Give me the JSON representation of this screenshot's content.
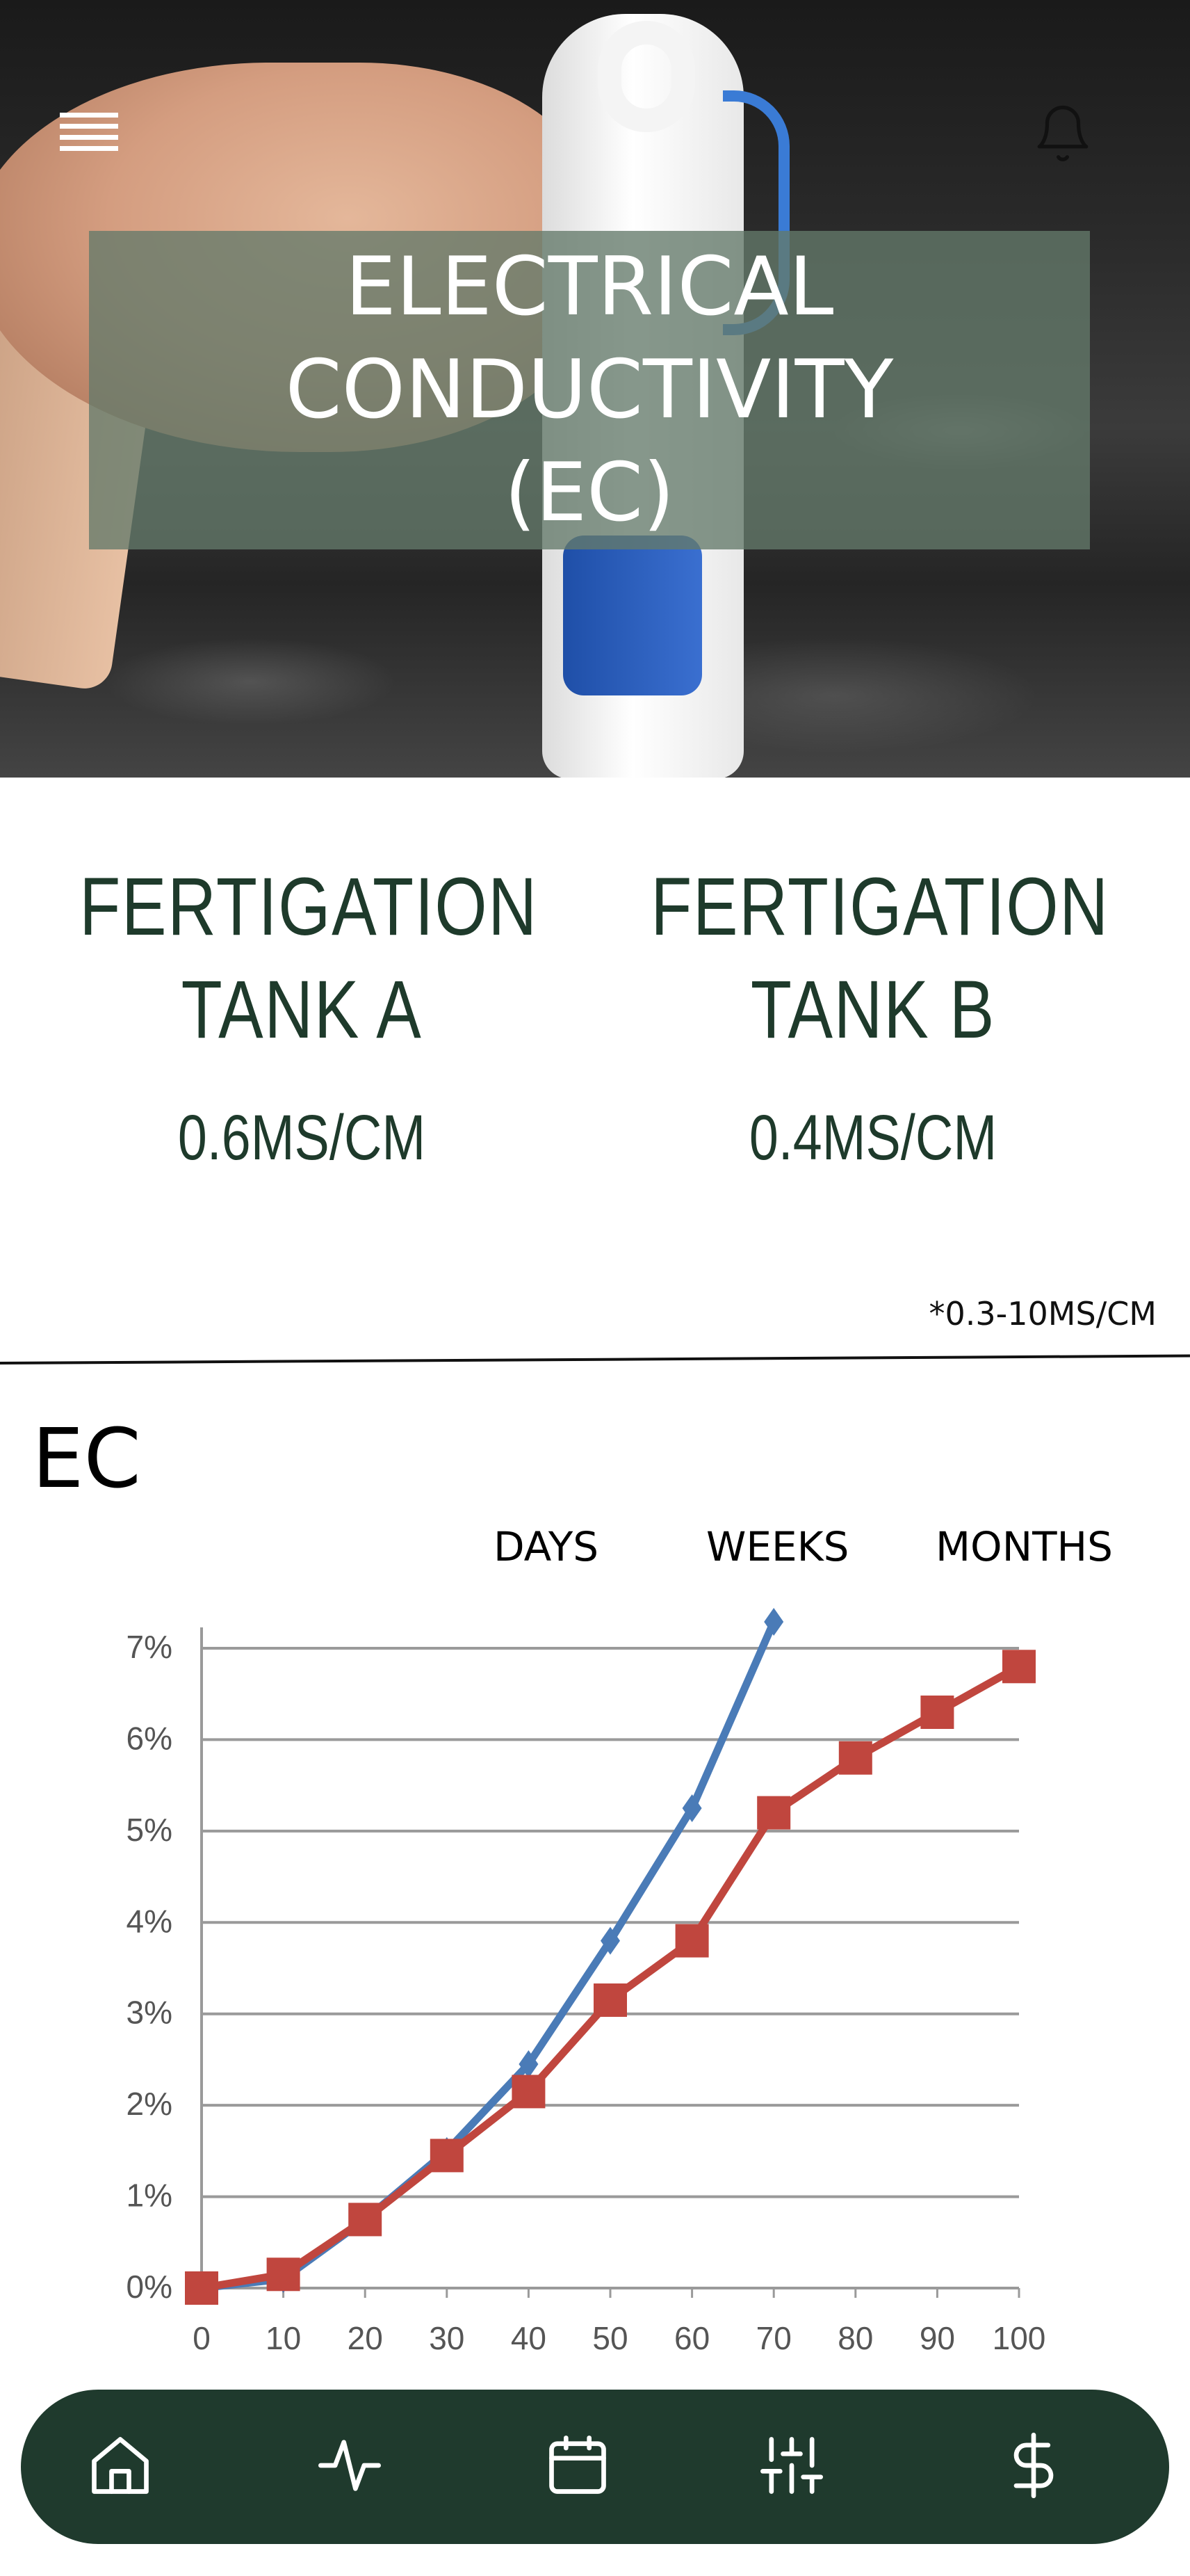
{
  "header": {
    "title": "ELECTRICAL\nCONDUCTIVITY\n(EC)",
    "menu_icon": "hamburger-menu-icon",
    "bell_icon": "bell-icon"
  },
  "tanks": [
    {
      "name": "FERTIGATION\nTANK A",
      "value": "0.6MS/CM"
    },
    {
      "name": "FERTIGATION\nTANK B",
      "value": "0.4MS/CM"
    }
  ],
  "range_note": "*0.3-10MS/CM",
  "ec_section": {
    "title": "EC",
    "ranges": [
      "DAYS",
      "WEEKS",
      "MONTHS"
    ]
  },
  "chart_data": {
    "type": "line",
    "x": [
      0,
      10,
      20,
      30,
      40,
      50,
      60,
      70,
      80,
      90,
      100
    ],
    "y_ticks": [
      "0%",
      "1%",
      "2%",
      "3%",
      "4%",
      "5%",
      "6%",
      "7%"
    ],
    "x_ticks": [
      "0",
      "10",
      "20",
      "30",
      "40",
      "50",
      "60",
      "70",
      "80",
      "90",
      "100"
    ],
    "xlim": [
      0,
      100
    ],
    "ylim": [
      0,
      7
    ],
    "grid": true,
    "series": [
      {
        "color": "#4a7bb7",
        "marker": "diamond",
        "values": [
          0,
          0.1,
          0.75,
          1.5,
          2.45,
          3.8,
          5.25,
          7.3,
          null,
          null,
          null
        ]
      },
      {
        "color": "#c0463e",
        "marker": "square",
        "values": [
          0,
          0.15,
          0.75,
          1.45,
          2.15,
          3.15,
          3.8,
          5.2,
          5.8,
          6.3,
          6.8
        ]
      }
    ]
  },
  "bottom_nav": {
    "items": [
      {
        "icon": "home-icon"
      },
      {
        "icon": "activity-icon"
      },
      {
        "icon": "calendar-icon"
      },
      {
        "icon": "sliders-icon"
      },
      {
        "icon": "dollar-icon"
      }
    ],
    "color": "#1f3a2d"
  }
}
